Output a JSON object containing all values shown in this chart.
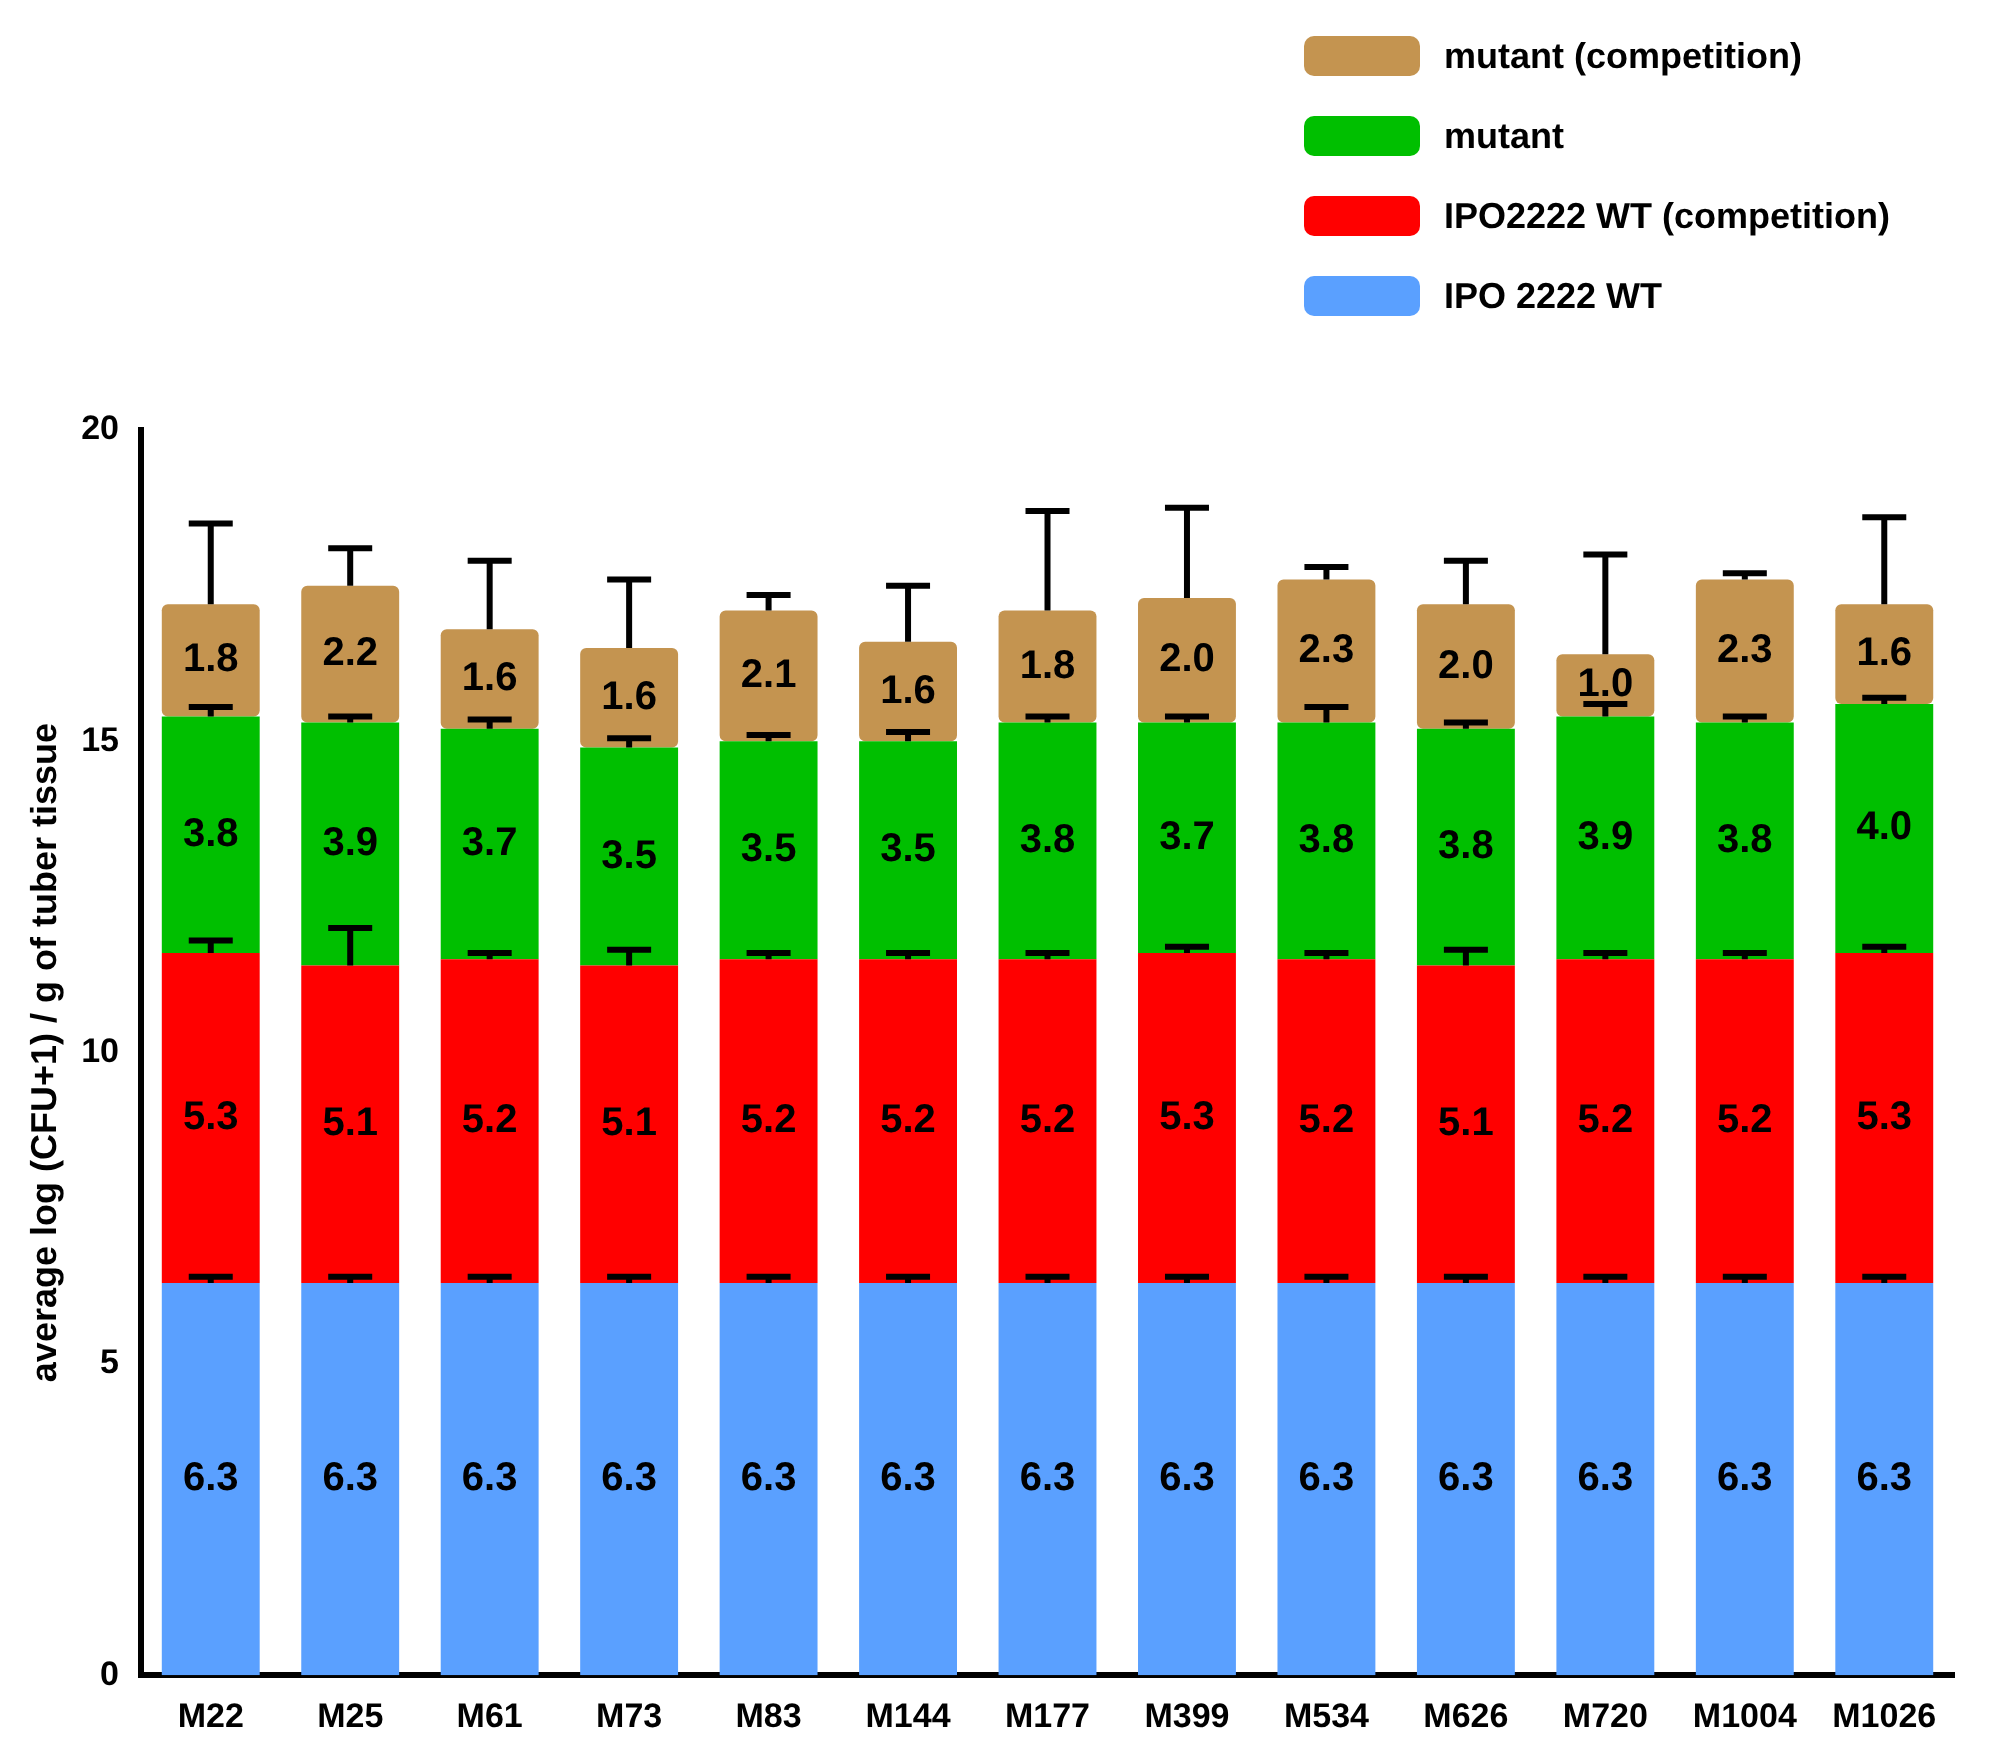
{
  "chart_data": {
    "type": "bar",
    "stacked": true,
    "ylabel": "average log (CFU+1) / g of tuber tissue",
    "categories": [
      "M22",
      "M25",
      "M61",
      "M73",
      "M83",
      "M144",
      "M177",
      "M399",
      "M534",
      "M626",
      "M720",
      "M1004",
      "M1026"
    ],
    "ylim": [
      0,
      20
    ],
    "yticks": [
      0,
      5,
      10,
      15,
      20
    ],
    "legend": "top right",
    "series": [
      {
        "name": "IPO 2222 WT",
        "color": "#5aa0ff",
        "values": [
          6.3,
          6.3,
          6.3,
          6.3,
          6.3,
          6.3,
          6.3,
          6.3,
          6.3,
          6.3,
          6.3,
          6.3,
          6.3
        ],
        "value_labels": [
          "6.3",
          "6.3",
          "6.3",
          "6.3",
          "6.3",
          "6.3",
          "6.3",
          "6.3",
          "6.3",
          "6.3",
          "6.3",
          "6.3",
          "6.3"
        ],
        "errors": [
          [
            6.3,
            6.4
          ],
          [
            6.3,
            6.4
          ],
          [
            6.3,
            6.4
          ],
          [
            6.3,
            6.4
          ],
          [
            6.3,
            6.4
          ],
          [
            6.3,
            6.4
          ],
          [
            6.3,
            6.4
          ],
          [
            6.3,
            6.4
          ],
          [
            6.3,
            6.4
          ],
          [
            6.3,
            6.4
          ],
          [
            6.3,
            6.4
          ],
          [
            6.3,
            6.4
          ],
          [
            6.3,
            6.4
          ]
        ]
      },
      {
        "name": "IPO2222 WT (competition)",
        "color": "#ff0000",
        "values": [
          5.3,
          5.1,
          5.2,
          5.1,
          5.2,
          5.2,
          5.2,
          5.3,
          5.2,
          5.1,
          5.2,
          5.2,
          5.3
        ],
        "value_labels": [
          "5.3",
          "5.1",
          "5.2",
          "5.1",
          "5.2",
          "5.2",
          "5.2",
          "5.3",
          "5.2",
          "5.1",
          "5.2",
          "5.2",
          "5.3"
        ],
        "errors": [
          [
            11.6,
            11.8
          ],
          [
            11.4,
            12.0
          ],
          [
            11.5,
            11.6
          ],
          [
            11.4,
            11.65
          ],
          [
            11.5,
            11.6
          ],
          [
            11.5,
            11.6
          ],
          [
            11.5,
            11.6
          ],
          [
            11.6,
            11.7
          ],
          [
            11.5,
            11.6
          ],
          [
            11.4,
            11.65
          ],
          [
            11.5,
            11.6
          ],
          [
            11.5,
            11.6
          ],
          [
            11.6,
            11.7
          ]
        ]
      },
      {
        "name": "mutant",
        "color": "#00bf00",
        "values": [
          3.8,
          3.9,
          3.7,
          3.5,
          3.5,
          3.5,
          3.8,
          3.7,
          3.8,
          3.8,
          3.9,
          3.8,
          4.0
        ],
        "value_labels": [
          "3.8",
          "3.9",
          "3.7",
          "3.5",
          "3.5",
          "3.5",
          "3.8",
          "3.7",
          "3.8",
          "3.8",
          "3.9",
          "3.8",
          "4.0"
        ],
        "errors": [
          [
            15.4,
            15.55
          ],
          [
            15.3,
            15.4
          ],
          [
            15.2,
            15.35
          ],
          [
            14.9,
            15.05
          ],
          [
            15.0,
            15.1
          ],
          [
            15.0,
            15.15
          ],
          [
            15.3,
            15.4
          ],
          [
            15.3,
            15.4
          ],
          [
            15.3,
            15.55
          ],
          [
            15.2,
            15.3
          ],
          [
            15.4,
            15.6
          ],
          [
            15.3,
            15.4
          ],
          [
            15.6,
            15.7
          ]
        ]
      },
      {
        "name": "mutant (competition)",
        "color": "#c49450",
        "values": [
          1.8,
          2.2,
          1.6,
          1.6,
          2.1,
          1.6,
          1.8,
          2.0,
          2.3,
          2.0,
          1.0,
          2.3,
          1.6
        ],
        "value_labels": [
          "1.8",
          "2.2",
          "1.6",
          "1.6",
          "2.1",
          "1.6",
          "1.8",
          "2.0",
          "2.3",
          "2.0",
          "1.0",
          "2.3",
          "1.6"
        ],
        "errors": [
          [
            17.2,
            18.5
          ],
          [
            17.5,
            18.1
          ],
          [
            16.8,
            17.9
          ],
          [
            16.5,
            17.6
          ],
          [
            17.1,
            17.35
          ],
          [
            16.6,
            17.5
          ],
          [
            17.1,
            18.7
          ],
          [
            17.3,
            18.75
          ],
          [
            17.6,
            17.8
          ],
          [
            17.2,
            17.9
          ],
          [
            16.4,
            18.0
          ],
          [
            17.6,
            17.7
          ],
          [
            17.2,
            18.6
          ]
        ]
      }
    ]
  }
}
